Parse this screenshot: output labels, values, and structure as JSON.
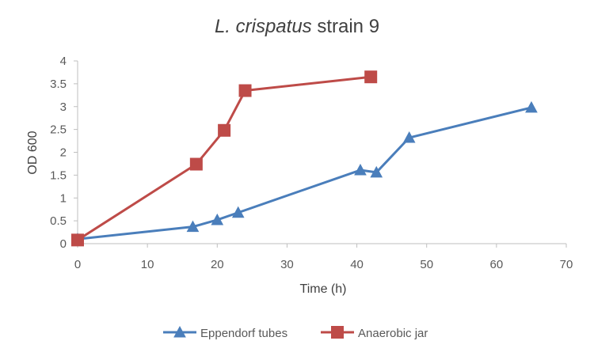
{
  "chart_data": {
    "type": "line",
    "title_italic": "L. crispatus",
    "title_rest": " strain 9",
    "xlabel": "Time (h)",
    "ylabel": "OD 600",
    "xlim": [
      0,
      70
    ],
    "ylim": [
      0,
      4
    ],
    "xticks": [
      0,
      10,
      20,
      30,
      40,
      50,
      60,
      70
    ],
    "yticks": [
      0,
      0.5,
      1,
      1.5,
      2,
      2.5,
      3,
      3.5,
      4
    ],
    "grid": false,
    "legend_position": "bottom",
    "series": [
      {
        "name": "Eppendorf tubes",
        "color": "#4a7ebb",
        "marker": "triangle",
        "x": [
          0,
          16.5,
          20,
          23,
          40.5,
          42.8,
          47.5,
          65
        ],
        "y": [
          0.1,
          0.37,
          0.52,
          0.68,
          1.61,
          1.56,
          2.32,
          2.98
        ]
      },
      {
        "name": "Anaerobic jar",
        "color": "#be4b48",
        "marker": "square",
        "x": [
          0,
          17,
          21,
          24,
          42
        ],
        "y": [
          0.08,
          1.74,
          2.48,
          3.35,
          3.65
        ]
      }
    ]
  }
}
